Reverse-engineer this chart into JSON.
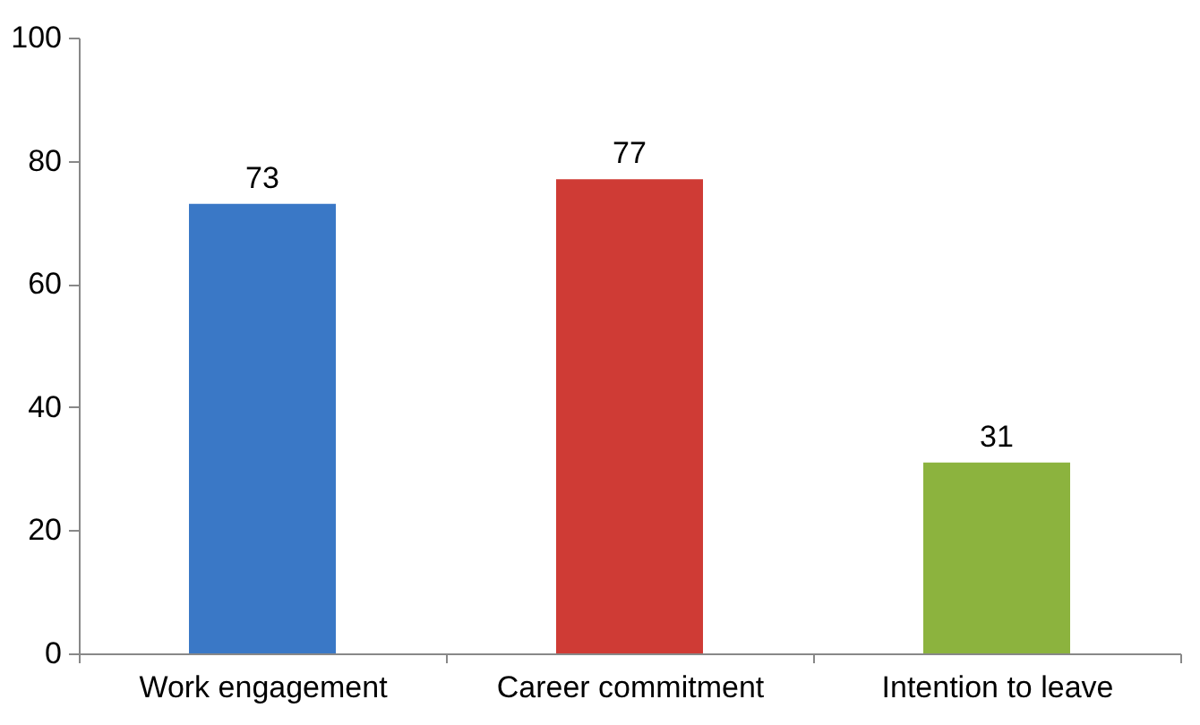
{
  "chart_data": {
    "type": "bar",
    "categories": [
      "Work engagement",
      "Career commitment",
      "Intention to leave"
    ],
    "values": [
      73,
      77,
      31
    ],
    "colors": [
      "#3a78c6",
      "#cf3b35",
      "#8cb33e"
    ],
    "ylim": [
      0,
      100
    ],
    "yticks": [
      0,
      20,
      40,
      60,
      80,
      100
    ],
    "grid": false,
    "data_labels": true
  }
}
